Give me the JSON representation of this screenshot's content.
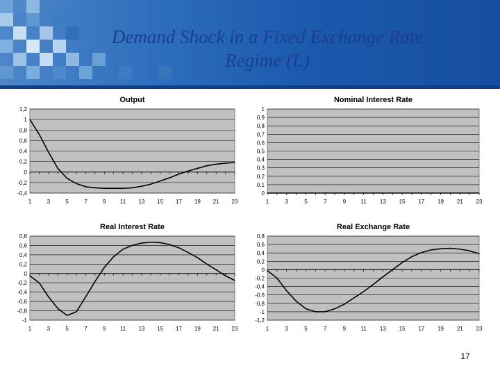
{
  "slide": {
    "title_line1": "Demand Shock in a Fixed Exchange Rate",
    "title_line2": "Regime (I.)",
    "page_number": "17"
  },
  "colors": {
    "plot_bg": "#c0c0c0",
    "line": "#000000",
    "header_blue": "#1c5aad",
    "title": "#1b3e8f"
  },
  "chart_data": [
    {
      "type": "line",
      "title": "Output",
      "x": [
        1,
        2,
        3,
        4,
        5,
        6,
        7,
        8,
        9,
        10,
        11,
        12,
        13,
        14,
        15,
        16,
        17,
        18,
        19,
        20,
        21,
        22,
        23
      ],
      "x_tick_labels": [
        "1",
        "3",
        "5",
        "7",
        "9",
        "11",
        "13",
        "15",
        "17",
        "19",
        "21",
        "23"
      ],
      "series": [
        {
          "values": [
            1.0,
            0.72,
            0.38,
            0.07,
            -0.12,
            -0.22,
            -0.28,
            -0.3,
            -0.31,
            -0.31,
            -0.31,
            -0.3,
            -0.27,
            -0.23,
            -0.17,
            -0.11,
            -0.04,
            0.02,
            0.07,
            0.12,
            0.15,
            0.17,
            0.18
          ]
        }
      ],
      "ylim": [
        -0.4,
        1.2
      ],
      "y_ticks": [
        1.2,
        1.0,
        0.8,
        0.6,
        0.4,
        0.2,
        0,
        -0.2,
        -0.4
      ],
      "y_tick_labels": [
        "1,2",
        "1",
        "0,8",
        "0,6",
        "0,4",
        "0,2",
        "0",
        "-0,2",
        "-0,4"
      ],
      "grid": true
    },
    {
      "type": "line",
      "title": "Nominal Interest Rate",
      "x": [
        1,
        2,
        3,
        4,
        5,
        6,
        7,
        8,
        9,
        10,
        11,
        12,
        13,
        14,
        15,
        16,
        17,
        18,
        19,
        20,
        21,
        22,
        23
      ],
      "x_tick_labels": [
        "1",
        "3",
        "5",
        "7",
        "9",
        "11",
        "13",
        "15",
        "17",
        "19",
        "21",
        "23"
      ],
      "series": [
        {
          "values": [
            0,
            0,
            0,
            0,
            0,
            0,
            0,
            0,
            0,
            0,
            0,
            0,
            0,
            0,
            0,
            0,
            0,
            0,
            0,
            0,
            0,
            0,
            0
          ]
        }
      ],
      "ylim": [
        0,
        1
      ],
      "y_ticks": [
        1,
        0.9,
        0.8,
        0.7,
        0.6,
        0.5,
        0.4,
        0.3,
        0.2,
        0.1,
        0
      ],
      "y_tick_labels": [
        "1",
        "0,9",
        "0,8",
        "0,7",
        "0,6",
        "0,5",
        "0,4",
        "0,3",
        "0,2",
        "0,1",
        "0"
      ],
      "grid": true
    },
    {
      "type": "line",
      "title": "Real Interest Rate",
      "x": [
        1,
        2,
        3,
        4,
        5,
        6,
        7,
        8,
        9,
        10,
        11,
        12,
        13,
        14,
        15,
        16,
        17,
        18,
        19,
        20,
        21,
        22,
        23
      ],
      "x_tick_labels": [
        "1",
        "3",
        "5",
        "7",
        "9",
        "11",
        "13",
        "15",
        "17",
        "19",
        "21",
        "23"
      ],
      "series": [
        {
          "values": [
            -0.05,
            -0.2,
            -0.5,
            -0.75,
            -0.9,
            -0.82,
            -0.5,
            -0.17,
            0.13,
            0.36,
            0.52,
            0.6,
            0.65,
            0.67,
            0.66,
            0.62,
            0.55,
            0.45,
            0.34,
            0.2,
            0.08,
            -0.05,
            -0.15
          ]
        }
      ],
      "ylim": [
        -1,
        0.8
      ],
      "y_ticks": [
        0.8,
        0.6,
        0.4,
        0.2,
        0,
        -0.2,
        -0.4,
        -0.6,
        -0.8,
        -1
      ],
      "y_tick_labels": [
        "0,8",
        "0,6",
        "0,4",
        "0,2",
        "0",
        "-0,2",
        "-0,4",
        "-0,6",
        "-0,8",
        "-1"
      ],
      "grid": true
    },
    {
      "type": "line",
      "title": "Real Exchange Rate",
      "x": [
        1,
        2,
        3,
        4,
        5,
        6,
        7,
        8,
        9,
        10,
        11,
        12,
        13,
        14,
        15,
        16,
        17,
        18,
        19,
        20,
        21,
        22,
        23
      ],
      "x_tick_labels": [
        "1",
        "3",
        "5",
        "7",
        "9",
        "11",
        "13",
        "15",
        "17",
        "19",
        "21",
        "23"
      ],
      "series": [
        {
          "values": [
            -0.02,
            -0.2,
            -0.5,
            -0.75,
            -0.93,
            -1.0,
            -1.0,
            -0.93,
            -0.82,
            -0.67,
            -0.52,
            -0.35,
            -0.17,
            0.0,
            0.17,
            0.31,
            0.41,
            0.47,
            0.5,
            0.51,
            0.49,
            0.45,
            0.38
          ]
        }
      ],
      "ylim": [
        -1.2,
        0.8
      ],
      "y_ticks": [
        0.8,
        0.6,
        0.4,
        0.2,
        0,
        -0.2,
        -0.4,
        -0.6,
        -0.8,
        -1,
        -1.2
      ],
      "y_tick_labels": [
        "0,8",
        "0,6",
        "0,4",
        "0,2",
        "0",
        "-0,2",
        "-0,4",
        "-0,6",
        "-0,8",
        "-1",
        "-1,2"
      ],
      "grid": true
    }
  ]
}
